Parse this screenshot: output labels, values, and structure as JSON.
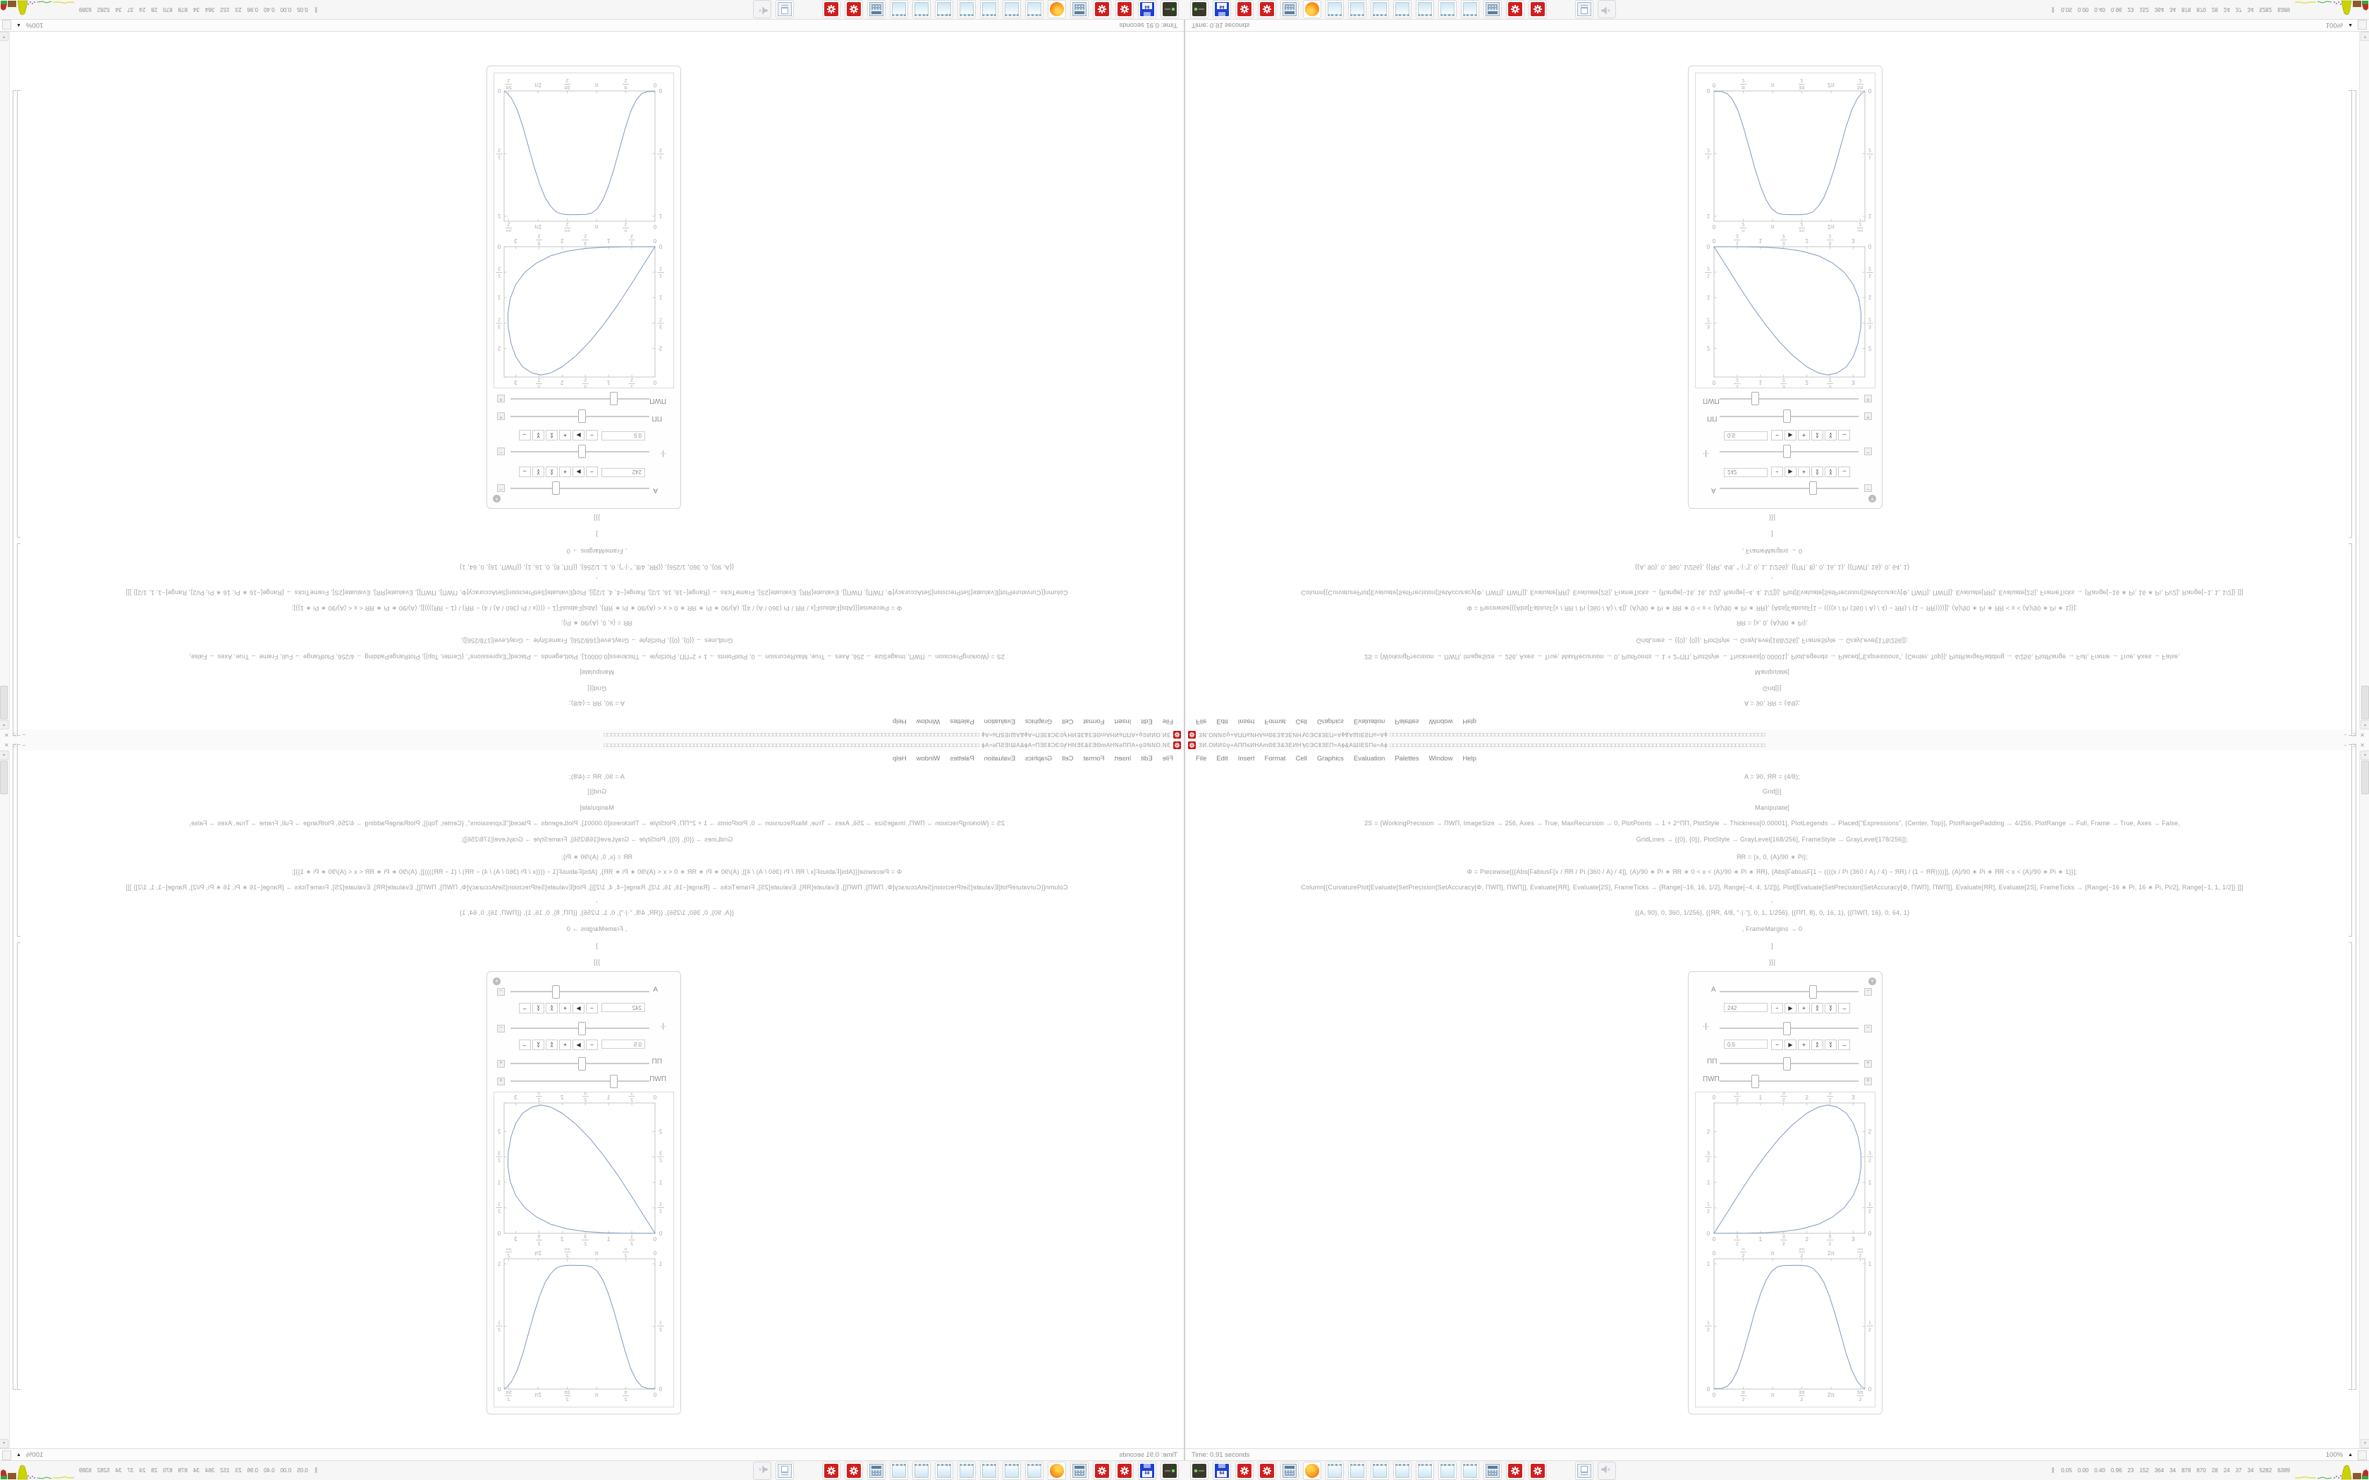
{
  "window": {
    "title": "ЗИ.ОИИ©ϙ+АППϭИНАmΘЕЗ&ЗЕИНϡ©ЭСⅡЗЕП≈Аϕ&АШΙЕЅПϭ≈Аϕ □□□□□□□□□□□□□□□□□□□□□□□□□□□□□□□□□□□□□□□□□□□□□□□□□□□□□□□□□□□□□□□□□□□□□□□□□□□□□□□□□□□□□□□□□□□□□□□□□□□□",
    "buttons": {
      "minimize": "–",
      "maximize": "□",
      "close": "✕"
    },
    "menu": [
      "File",
      "Edit",
      "Insert",
      "Format",
      "Cell",
      "Graphics",
      "Evaluation",
      "Palettes",
      "Window",
      "Help"
    ],
    "status_time": "Time: 0.91 seconds",
    "zoom_level": "100%"
  },
  "notebook": {
    "code_lines": [
      {
        "y": 9,
        "text": "Α = 90, ЯR = (4/8);"
      },
      {
        "y": 30,
        "text": "Grid[{{"
      },
      {
        "y": 53,
        "text": "Manipulate["
      },
      {
        "y": 75,
        "text": "2S = {WorkingPrecision → ΠWΠ, ImageSize → 256, Axes → True, MaxRecursion → 0, PlotPoints → 1 + 2^ΠΠ, PlotStyle → Thickness[0.00001], PlotLegends → Placed[\"Expressions\", {Center, Top}], PlotRangePadding → 4/256, PlotRange → Full, Frame → True, Axes → False,"
      },
      {
        "y": 98,
        "text": "GridLines → {{0}, {0}}, PlotStyle → GrayLevel[168/256], FrameStyle → GrayLevel[178/256]};"
      },
      {
        "y": 123,
        "text": "ЯR = {x, 0, (Α)/90 ∗ Pi};"
      },
      {
        "y": 144,
        "text": "Φ = Piecewise[{{Abs[FabiusF[x / ЯR / Pi (360 / Α) / 4]], (Α)/90 ∗ Pi ∗ ЯR ∗ 0 < x < (Α)/90 ∗ Pi ∗ ЯR}, {Abs[FabiusF[1 − ((((x / Pi (360 / Α) / 4) − ЯR) / (1 − ЯR))))]], (Α)/90 ∗ Pi ∗ ЯR < x < (Α)/90 ∗ Pi ∗ 1}}];"
      },
      {
        "y": 166,
        "text": "Column[{CurvaturePlot[Evaluate[SetPrecision[SetAccuracy[Φ, ΠWΠ], ΠWΠ]], Evaluate[ЯR], Evaluate[2S], FrameTicks → {Range[−16, 16, 1/2], Range[−4, 4, 1/2]}], Plot[Evaluate[SetPrecision[SetAccuracy[Φ, ΠWΠ], ΠWΠ]], Evaluate[ЯR], Evaluate[2S], FrameTicks → {Range[−16 ∗ Pi, 16 ∗ Pi, Pi/2], Range[−1, 1, 1/2]} ]]]"
      },
      {
        "y": 184,
        "text": ","
      },
      {
        "y": 202,
        "text": "{{Α, 90}, 0, 360, 1/256}, {{ЯR, 4/8, \"·|·\"}, 0, 1, 1/256}, {{ΠΠ, 8}, 0, 16, 1}, {{ΠWΠ, 16}, 0, 64, 1}"
      },
      {
        "y": 225,
        "text": ", FrameMargins → 0"
      },
      {
        "y": 249,
        "text": "]"
      },
      {
        "y": 272,
        "text": "}}]"
      }
    ]
  },
  "manipulate": {
    "sliders": [
      {
        "label": "Α",
        "fraction": 0.67,
        "expanded": true,
        "value": "242"
      },
      {
        "label": "·|·",
        "fraction": 0.48,
        "expanded": true,
        "value": "0.5"
      },
      {
        "label": "ΠΠ",
        "fraction": 0.48,
        "expanded": false,
        "value": ""
      },
      {
        "label": "ΠWΠ",
        "fraction": 0.25,
        "expanded": false,
        "value": ""
      }
    ],
    "buttons": [
      {
        "name": "step-back",
        "glyph": "−"
      },
      {
        "name": "play",
        "glyph": "▶"
      },
      {
        "name": "step-forward",
        "glyph": "+"
      },
      {
        "name": "faster",
        "glyph": "∧∧"
      },
      {
        "name": "slower",
        "glyph": "∨∨"
      },
      {
        "name": "direction",
        "glyph": "→"
      }
    ]
  },
  "chart_data": [
    {
      "type": "line",
      "title": "",
      "xlabel": "",
      "ylabel": "",
      "closed": true,
      "frame": true,
      "xlim": [
        0,
        3.25
      ],
      "ylim": [
        0,
        2.56
      ],
      "x_ticks": [
        {
          "label": "0",
          "v": 0
        },
        {
          "label": "1/2",
          "v": 0.5
        },
        {
          "label": "1",
          "v": 1
        },
        {
          "label": "3/2",
          "v": 1.5
        },
        {
          "label": "2",
          "v": 2
        },
        {
          "label": "5/2",
          "v": 2.5
        },
        {
          "label": "3",
          "v": 3
        }
      ],
      "y_ticks": [
        {
          "label": "0",
          "v": 0
        },
        {
          "label": "1/2",
          "v": 0.5
        },
        {
          "label": "1",
          "v": 1
        },
        {
          "label": "3/2",
          "v": 1.5
        },
        {
          "label": "2",
          "v": 2
        }
      ],
      "color": "#7d98c1",
      "points": [
        [
          0,
          0
        ],
        [
          0.25,
          0.36
        ],
        [
          0.5,
          0.72
        ],
        [
          0.8,
          1.14
        ],
        [
          1.1,
          1.52
        ],
        [
          1.4,
          1.86
        ],
        [
          1.7,
          2.14
        ],
        [
          2.0,
          2.36
        ],
        [
          2.25,
          2.48
        ],
        [
          2.45,
          2.52
        ],
        [
          2.65,
          2.48
        ],
        [
          2.85,
          2.36
        ],
        [
          3.0,
          2.16
        ],
        [
          3.1,
          1.9
        ],
        [
          3.16,
          1.6
        ],
        [
          3.17,
          1.32
        ],
        [
          3.12,
          1.02
        ],
        [
          3.0,
          0.74
        ],
        [
          2.8,
          0.5
        ],
        [
          2.55,
          0.32
        ],
        [
          2.25,
          0.18
        ],
        [
          1.9,
          0.09
        ],
        [
          1.5,
          0.035
        ],
        [
          1.1,
          0.012
        ],
        [
          0.7,
          0.003
        ],
        [
          0.3,
          0.001
        ],
        [
          0,
          0
        ]
      ]
    },
    {
      "type": "line",
      "title": "",
      "xlabel": "",
      "ylabel": "",
      "closed": false,
      "frame": true,
      "xlim": [
        0,
        8.1
      ],
      "ylim": [
        0,
        1.04
      ],
      "x_ticks": [
        {
          "label": "0",
          "v": 0
        },
        {
          "label": "π/2",
          "v": 1.5708
        },
        {
          "label": "π",
          "v": 3.1416
        },
        {
          "label": "3π/2",
          "v": 4.7124
        },
        {
          "label": "2π",
          "v": 6.2832
        },
        {
          "label": "5π/2",
          "v": 7.854
        }
      ],
      "y_ticks": [
        {
          "label": "0",
          "v": 0
        },
        {
          "label": "1/2",
          "v": 0.5
        },
        {
          "label": "1",
          "v": 1
        }
      ],
      "color": "#7d98c1",
      "points": [
        [
          0,
          0.004
        ],
        [
          0.4,
          0.005
        ],
        [
          0.7,
          0.02
        ],
        [
          1.0,
          0.07
        ],
        [
          1.3,
          0.16
        ],
        [
          1.6,
          0.3
        ],
        [
          1.9,
          0.46
        ],
        [
          2.2,
          0.62
        ],
        [
          2.5,
          0.76
        ],
        [
          2.8,
          0.87
        ],
        [
          3.1,
          0.94
        ],
        [
          3.4,
          0.975
        ],
        [
          3.7,
          0.985
        ],
        [
          4.2,
          0.987
        ],
        [
          4.7,
          0.987
        ],
        [
          5.0,
          0.982
        ],
        [
          5.3,
          0.965
        ],
        [
          5.6,
          0.92
        ],
        [
          5.9,
          0.85
        ],
        [
          6.2,
          0.74
        ],
        [
          6.5,
          0.6
        ],
        [
          6.8,
          0.44
        ],
        [
          7.1,
          0.28
        ],
        [
          7.4,
          0.15
        ],
        [
          7.7,
          0.06
        ],
        [
          7.95,
          0.015
        ],
        [
          8.1,
          0.005
        ]
      ]
    }
  ],
  "taskbar": {
    "icons": [
      "c64-emulator",
      "floppy-64",
      "mathematica",
      "mathematica",
      "calculator",
      "firefox",
      "notepad",
      "notepad",
      "notepad",
      "notepad",
      "notepad",
      "notepad",
      "notepad",
      "calculator",
      "mathematica",
      "mathematica",
      "printer",
      "volume-muted"
    ],
    "tray": {
      "chevron": "∧",
      "values": [
        "0.05",
        "0.00",
        "0.40",
        "0.96",
        "23",
        "152",
        "364",
        "34",
        "878",
        "870",
        "28",
        "24",
        "37",
        "34",
        "5282",
        "6389"
      ],
      "graph_colors": {
        "yellow": "#d7d700",
        "green": "#44aa44",
        "purple": "#7a3fae",
        "blob": "#ccd400",
        "brown": "#8a5a2a",
        "red": "#b23222",
        "base_green": "#3f9f3f"
      }
    }
  }
}
